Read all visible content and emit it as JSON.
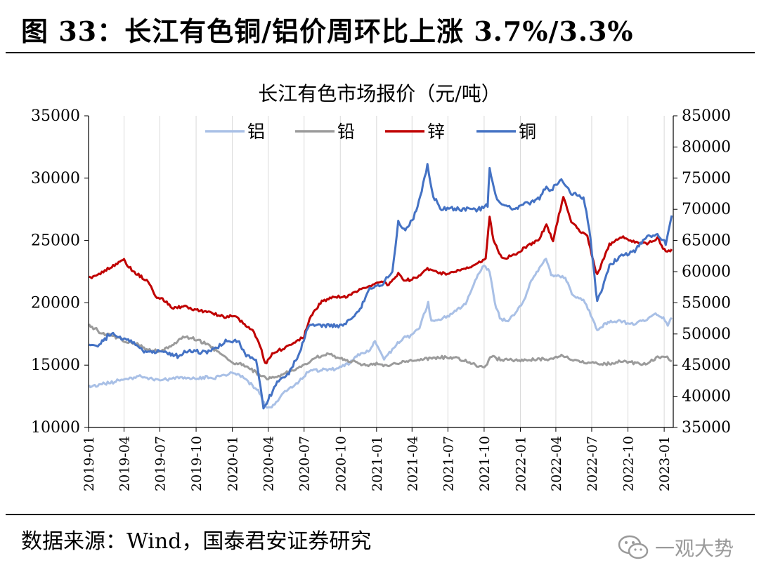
{
  "figure": {
    "title": "图 33：长江有色铜/铝价周环比上涨 3.7%/3.3%",
    "source": "数据来源：Wind，国泰君安证券研究",
    "watermark": "一观大势"
  },
  "chart_data": {
    "type": "line",
    "title": "长江有色市场报价（元/吨）",
    "xlabel": "",
    "ylabel": "",
    "x_ticks": [
      "2019-01",
      "2019-04",
      "2019-07",
      "2019-10",
      "2020-01",
      "2020-04",
      "2020-07",
      "2020-10",
      "2021-01",
      "2021-04",
      "2021-07",
      "2021-10",
      "2022-01",
      "2022-04",
      "2022-07",
      "2022-10",
      "2023-01"
    ],
    "y_left": {
      "range": [
        10000,
        35000
      ],
      "ticks": [
        10000,
        15000,
        20000,
        25000,
        30000,
        35000
      ]
    },
    "y_right": {
      "range": [
        35000,
        85000
      ],
      "ticks": [
        35000,
        40000,
        45000,
        50000,
        55000,
        60000,
        65000,
        70000,
        75000,
        80000,
        85000
      ]
    },
    "legend_position": "top",
    "series": [
      {
        "name": "铝",
        "axis": "left",
        "color": "#a9c0e6",
        "points": [
          [
            "2019-01-02",
            13300
          ],
          [
            "2019-02-15",
            13500
          ],
          [
            "2019-04-01",
            13900
          ],
          [
            "2019-05-15",
            14100
          ],
          [
            "2019-07-01",
            13800
          ],
          [
            "2019-08-15",
            14000
          ],
          [
            "2019-10-01",
            14000
          ],
          [
            "2019-11-15",
            14000
          ],
          [
            "2019-12-20",
            14300
          ],
          [
            "2020-01-15",
            14300
          ],
          [
            "2020-02-10",
            13700
          ],
          [
            "2020-03-10",
            12800
          ],
          [
            "2020-03-25",
            11700
          ],
          [
            "2020-04-10",
            11600
          ],
          [
            "2020-05-10",
            12800
          ],
          [
            "2020-06-15",
            13600
          ],
          [
            "2020-07-15",
            14600
          ],
          [
            "2020-08-15",
            14600
          ],
          [
            "2020-09-15",
            14700
          ],
          [
            "2020-10-15",
            15000
          ],
          [
            "2020-11-15",
            15800
          ],
          [
            "2020-12-15",
            16200
          ],
          [
            "2020-12-28",
            17000
          ],
          [
            "2021-01-20",
            15500
          ],
          [
            "2021-02-20",
            16600
          ],
          [
            "2021-03-10",
            17200
          ],
          [
            "2021-03-25",
            17300
          ],
          [
            "2021-04-20",
            18000
          ],
          [
            "2021-05-12",
            20000
          ],
          [
            "2021-05-20",
            18500
          ],
          [
            "2021-06-15",
            18700
          ],
          [
            "2021-07-15",
            19200
          ],
          [
            "2021-08-15",
            20000
          ],
          [
            "2021-09-15",
            22200
          ],
          [
            "2021-10-01",
            23000
          ],
          [
            "2021-10-15",
            22500
          ],
          [
            "2021-10-28",
            20000
          ],
          [
            "2021-11-10",
            18800
          ],
          [
            "2021-12-01",
            18500
          ],
          [
            "2021-12-20",
            19200
          ],
          [
            "2022-01-10",
            20200
          ],
          [
            "2022-02-01",
            22000
          ],
          [
            "2022-03-07",
            23500
          ],
          [
            "2022-03-20",
            22200
          ],
          [
            "2022-04-10",
            22100
          ],
          [
            "2022-04-25",
            22000
          ],
          [
            "2022-05-15",
            20500
          ],
          [
            "2022-06-10",
            20300
          ],
          [
            "2022-06-25",
            19300
          ],
          [
            "2022-07-15",
            17900
          ],
          [
            "2022-08-15",
            18500
          ],
          [
            "2022-09-15",
            18500
          ],
          [
            "2022-10-15",
            18300
          ],
          [
            "2022-11-15",
            18600
          ],
          [
            "2022-12-10",
            19200
          ],
          [
            "2022-12-30",
            18800
          ],
          [
            "2023-01-10",
            18200
          ],
          [
            "2023-01-20",
            18800
          ]
        ]
      },
      {
        "name": "铅",
        "axis": "left",
        "color": "#9b9b9b",
        "points": [
          [
            "2019-01-02",
            18200
          ],
          [
            "2019-02-01",
            17600
          ],
          [
            "2019-03-01",
            17400
          ],
          [
            "2019-04-01",
            17000
          ],
          [
            "2019-05-01",
            16700
          ],
          [
            "2019-06-01",
            16200
          ],
          [
            "2019-07-01",
            16100
          ],
          [
            "2019-08-01",
            16600
          ],
          [
            "2019-09-01",
            17300
          ],
          [
            "2019-10-01",
            17100
          ],
          [
            "2019-11-01",
            16600
          ],
          [
            "2019-12-01",
            16000
          ],
          [
            "2020-01-01",
            15200
          ],
          [
            "2020-02-01",
            15000
          ],
          [
            "2020-03-01",
            14400
          ],
          [
            "2020-04-01",
            13900
          ],
          [
            "2020-05-01",
            14200
          ],
          [
            "2020-06-01",
            14600
          ],
          [
            "2020-07-01",
            15000
          ],
          [
            "2020-08-01",
            15600
          ],
          [
            "2020-09-01",
            15900
          ],
          [
            "2020-10-01",
            15500
          ],
          [
            "2020-11-01",
            15300
          ],
          [
            "2020-12-01",
            15000
          ],
          [
            "2021-01-01",
            15100
          ],
          [
            "2021-02-01",
            15000
          ],
          [
            "2021-03-01",
            15200
          ],
          [
            "2021-04-01",
            15400
          ],
          [
            "2021-05-01",
            15500
          ],
          [
            "2021-06-01",
            15600
          ],
          [
            "2021-07-01",
            15600
          ],
          [
            "2021-08-01",
            15500
          ],
          [
            "2021-09-01",
            15100
          ],
          [
            "2021-10-01",
            14800
          ],
          [
            "2021-10-20",
            15700
          ],
          [
            "2021-11-15",
            15400
          ],
          [
            "2021-12-15",
            15400
          ],
          [
            "2022-01-15",
            15400
          ],
          [
            "2022-02-15",
            15500
          ],
          [
            "2022-03-15",
            15500
          ],
          [
            "2022-04-15",
            15800
          ],
          [
            "2022-05-15",
            15400
          ],
          [
            "2022-06-15",
            15200
          ],
          [
            "2022-07-15",
            15100
          ],
          [
            "2022-08-15",
            15100
          ],
          [
            "2022-09-15",
            15300
          ],
          [
            "2022-10-15",
            15200
          ],
          [
            "2022-11-15",
            15100
          ],
          [
            "2022-12-15",
            15600
          ],
          [
            "2023-01-05",
            15700
          ],
          [
            "2023-01-20",
            15300
          ]
        ]
      },
      {
        "name": "锌",
        "axis": "left",
        "color": "#c00000",
        "points": [
          [
            "2019-01-02",
            22000
          ],
          [
            "2019-01-20",
            22200
          ],
          [
            "2019-02-15",
            22700
          ],
          [
            "2019-03-15",
            23100
          ],
          [
            "2019-04-01",
            23500
          ],
          [
            "2019-04-10",
            23000
          ],
          [
            "2019-05-01",
            22400
          ],
          [
            "2019-06-01",
            21700
          ],
          [
            "2019-06-20",
            20500
          ],
          [
            "2019-07-15",
            20100
          ],
          [
            "2019-08-01",
            19600
          ],
          [
            "2019-09-01",
            19700
          ],
          [
            "2019-10-01",
            19400
          ],
          [
            "2019-11-01",
            19300
          ],
          [
            "2019-12-01",
            18900
          ],
          [
            "2020-01-10",
            18900
          ],
          [
            "2020-02-01",
            18200
          ],
          [
            "2020-02-25",
            17700
          ],
          [
            "2020-03-15",
            16300
          ],
          [
            "2020-03-24",
            15100
          ],
          [
            "2020-04-15",
            16000
          ],
          [
            "2020-05-15",
            16400
          ],
          [
            "2020-06-15",
            17000
          ],
          [
            "2020-07-01",
            17300
          ],
          [
            "2020-07-15",
            18800
          ],
          [
            "2020-08-15",
            20100
          ],
          [
            "2020-09-15",
            20500
          ],
          [
            "2020-10-15",
            20500
          ],
          [
            "2020-11-15",
            21000
          ],
          [
            "2020-12-15",
            21300
          ],
          [
            "2021-01-10",
            21700
          ],
          [
            "2021-02-01",
            21500
          ],
          [
            "2021-02-25",
            22300
          ],
          [
            "2021-03-15",
            21800
          ],
          [
            "2021-04-15",
            22000
          ],
          [
            "2021-05-10",
            22800
          ],
          [
            "2021-06-15",
            22300
          ],
          [
            "2021-07-15",
            22500
          ],
          [
            "2021-08-15",
            22700
          ],
          [
            "2021-09-15",
            23200
          ],
          [
            "2021-10-05",
            23500
          ],
          [
            "2021-10-15",
            27000
          ],
          [
            "2021-10-25",
            25000
          ],
          [
            "2021-11-15",
            23500
          ],
          [
            "2021-12-15",
            23800
          ],
          [
            "2022-01-15",
            24500
          ],
          [
            "2022-02-15",
            25000
          ],
          [
            "2022-03-08",
            26200
          ],
          [
            "2022-03-25",
            25000
          ],
          [
            "2022-04-20",
            28500
          ],
          [
            "2022-05-10",
            26500
          ],
          [
            "2022-06-01",
            25800
          ],
          [
            "2022-06-20",
            25400
          ],
          [
            "2022-07-05",
            23300
          ],
          [
            "2022-07-15",
            22200
          ],
          [
            "2022-08-15",
            24700
          ],
          [
            "2022-09-15",
            25300
          ],
          [
            "2022-10-15",
            24900
          ],
          [
            "2022-11-15",
            24700
          ],
          [
            "2022-12-15",
            25200
          ],
          [
            "2023-01-05",
            24000
          ],
          [
            "2023-01-20",
            24300
          ]
        ]
      },
      {
        "name": "铜",
        "axis": "right",
        "color": "#4472c4",
        "points": [
          [
            "2019-01-02",
            48000
          ],
          [
            "2019-02-01",
            48500
          ],
          [
            "2019-02-25",
            50000
          ],
          [
            "2019-03-15",
            49500
          ],
          [
            "2019-04-15",
            49000
          ],
          [
            "2019-05-15",
            47500
          ],
          [
            "2019-06-15",
            47200
          ],
          [
            "2019-07-15",
            47000
          ],
          [
            "2019-08-15",
            46500
          ],
          [
            "2019-09-15",
            47300
          ],
          [
            "2019-10-15",
            47000
          ],
          [
            "2019-11-15",
            47500
          ],
          [
            "2019-12-15",
            48800
          ],
          [
            "2020-01-15",
            49000
          ],
          [
            "2020-02-05",
            46500
          ],
          [
            "2020-03-01",
            46000
          ],
          [
            "2020-03-20",
            38000
          ],
          [
            "2020-04-01",
            39500
          ],
          [
            "2020-04-20",
            42000
          ],
          [
            "2020-05-20",
            43500
          ],
          [
            "2020-06-20",
            47000
          ],
          [
            "2020-07-10",
            51000
          ],
          [
            "2020-07-20",
            51500
          ],
          [
            "2020-08-15",
            51500
          ],
          [
            "2020-09-15",
            51300
          ],
          [
            "2020-10-15",
            51600
          ],
          [
            "2020-11-20",
            54000
          ],
          [
            "2020-12-15",
            57500
          ],
          [
            "2021-01-15",
            58000
          ],
          [
            "2021-02-10",
            60000
          ],
          [
            "2021-02-25",
            68000
          ],
          [
            "2021-03-15",
            66500
          ],
          [
            "2021-04-15",
            70000
          ],
          [
            "2021-05-10",
            77000
          ],
          [
            "2021-05-25",
            72000
          ],
          [
            "2021-06-15",
            70000
          ],
          [
            "2021-07-15",
            70000
          ],
          [
            "2021-08-15",
            70000
          ],
          [
            "2021-09-15",
            70000
          ],
          [
            "2021-10-10",
            70500
          ],
          [
            "2021-10-15",
            76500
          ],
          [
            "2021-10-30",
            72000
          ],
          [
            "2021-11-15",
            71000
          ],
          [
            "2021-12-15",
            70000
          ],
          [
            "2022-01-15",
            71000
          ],
          [
            "2022-02-15",
            71500
          ],
          [
            "2022-03-08",
            73500
          ],
          [
            "2022-03-20",
            73000
          ],
          [
            "2022-04-15",
            75000
          ],
          [
            "2022-05-10",
            72500
          ],
          [
            "2022-06-10",
            72000
          ],
          [
            "2022-06-25",
            67000
          ],
          [
            "2022-07-15",
            55000
          ],
          [
            "2022-08-15",
            61000
          ],
          [
            "2022-09-15",
            62500
          ],
          [
            "2022-10-15",
            63000
          ],
          [
            "2022-11-15",
            65500
          ],
          [
            "2022-12-15",
            66000
          ],
          [
            "2023-01-05",
            64500
          ],
          [
            "2023-01-20",
            69000
          ]
        ]
      }
    ]
  }
}
